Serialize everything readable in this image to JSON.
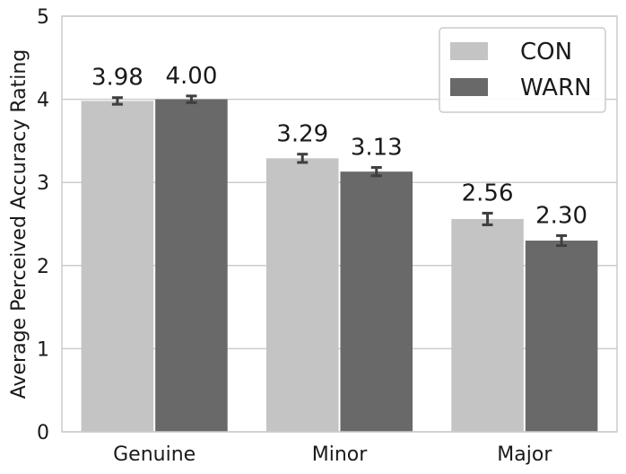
{
  "chart_data": {
    "type": "bar",
    "title": "",
    "xlabel": "",
    "ylabel": "Average Perceived Accuracy Rating",
    "ylim": [
      0,
      5
    ],
    "yticks": [
      0,
      1,
      2,
      3,
      4,
      5
    ],
    "grid": "horizontal",
    "legend_placement": "top-right",
    "categories": [
      "Genuine",
      "Minor",
      "Major"
    ],
    "series": [
      {
        "name": "CON",
        "color": "#c4c4c4",
        "values": [
          3.98,
          3.29,
          2.56
        ],
        "labels": [
          "3.98",
          "3.29",
          "2.56"
        ],
        "error": [
          0.04,
          0.05,
          0.07
        ]
      },
      {
        "name": "WARN",
        "color": "#696969",
        "values": [
          4.0,
          3.13,
          2.3
        ],
        "labels": [
          "4.00",
          "3.13",
          "2.30"
        ],
        "error": [
          0.04,
          0.05,
          0.06
        ]
      }
    ]
  }
}
